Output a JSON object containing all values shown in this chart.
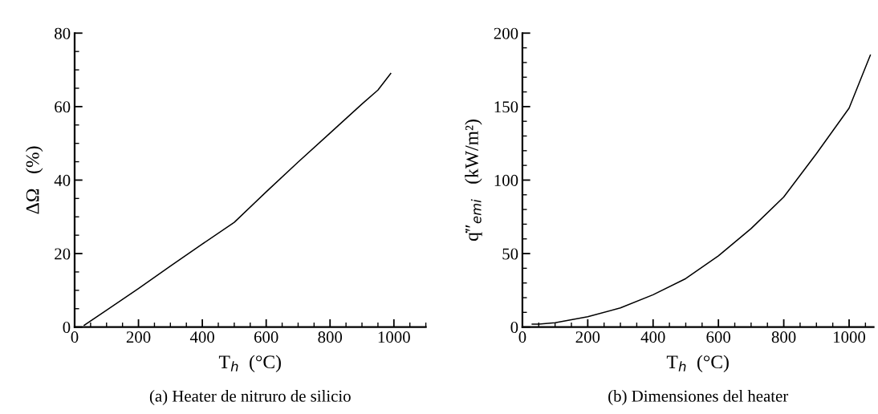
{
  "chart_data": [
    {
      "type": "line",
      "xlabel": "T$_{h}$  (°C)",
      "ylabel": "ΔΩ   (%)",
      "xlim": [
        0,
        1100
      ],
      "ylim": [
        0,
        80
      ],
      "xticks": [
        0,
        200,
        400,
        600,
        800,
        1000
      ],
      "yticks": [
        0,
        20,
        40,
        60,
        80
      ],
      "grid": false,
      "legend": false,
      "series": [
        {
          "color": "#000000",
          "x": [
            30,
            100,
            200,
            300,
            400,
            500,
            600,
            700,
            800,
            900,
            950,
            990
          ],
          "values": [
            0.5,
            4.6,
            10.5,
            16.6,
            22.6,
            28.5,
            36.8,
            44.9,
            52.8,
            60.7,
            64.5,
            69
          ]
        }
      ],
      "annotations": [
        "(a) Heater de nitruro de silicio"
      ]
    },
    {
      "type": "line",
      "xlabel": "T$_{h}$  (°C)",
      "ylabel": "q̇″$_{emi}$   (kW/m²)",
      "xlim": [
        0,
        1075
      ],
      "ylim": [
        0,
        200
      ],
      "xticks": [
        0,
        200,
        400,
        600,
        800,
        1000
      ],
      "yticks": [
        0,
        50,
        100,
        150,
        200
      ],
      "grid": false,
      "legend": false,
      "series": [
        {
          "color": "#000000",
          "x": [
            30,
            50,
            100,
            200,
            300,
            400,
            500,
            600,
            700,
            800,
            900,
            1000,
            1065
          ],
          "values": [
            2,
            2,
            3,
            7,
            13,
            22,
            33,
            48.5,
            67,
            88.5,
            118,
            149,
            185
          ]
        }
      ],
      "annotations": [
        "(b) Dimensiones del heater"
      ]
    }
  ]
}
